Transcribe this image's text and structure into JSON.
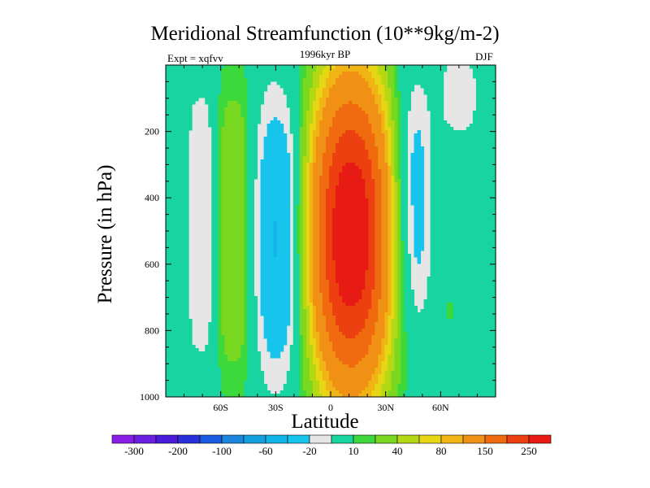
{
  "chart_data": {
    "type": "heatmap",
    "title": "Meridional Streamfunction (10**9kg/m-2)",
    "subtitle": "1996kyr BP",
    "left_string": "Expt = xqfvv",
    "right_string": "DJF",
    "xlabel": "Latitude",
    "ylabel": "Pressure (in hPa)",
    "xlim": [
      -90,
      90
    ],
    "ylim": [
      1000,
      0
    ],
    "x_ticks": [
      {
        "value": -60,
        "label": "60S"
      },
      {
        "value": -30,
        "label": "30S"
      },
      {
        "value": 0,
        "label": "0"
      },
      {
        "value": 30,
        "label": "30N"
      },
      {
        "value": 60,
        "label": "60N"
      }
    ],
    "y_ticks": [
      {
        "value": 200,
        "label": "200"
      },
      {
        "value": 400,
        "label": "400"
      },
      {
        "value": 600,
        "label": "600"
      },
      {
        "value": 800,
        "label": "800"
      },
      {
        "value": 1000,
        "label": "1000"
      }
    ],
    "contour_levels": [
      -300,
      -250,
      -200,
      -150,
      -100,
      -80,
      -60,
      -40,
      -20,
      -10,
      10,
      20,
      40,
      60,
      80,
      100,
      150,
      200,
      250,
      300
    ],
    "colorbar_labels": [
      "-300",
      "-200",
      "-100",
      "-60",
      "-20",
      "10",
      "40",
      "80",
      "150",
      "250"
    ],
    "colorbar_colors": [
      "#8a1ee6",
      "#6a1ee0",
      "#4a1ad8",
      "#2a30d8",
      "#1a5ae0",
      "#1a86e0",
      "#14a0e0",
      "#12b4e8",
      "#16c4ec",
      "#e6e6e6",
      "#18d4a0",
      "#3cd83c",
      "#7ad820",
      "#b4d814",
      "#e6d614",
      "#f0b414",
      "#f09014",
      "#f06a10",
      "#ec4010",
      "#e81a14"
    ],
    "features": [
      {
        "region": "southern high-latitude negative cell",
        "lat_range": [
          -78,
          -65
        ],
        "p_range": [
          20,
          970
        ],
        "value": -20
      },
      {
        "region": "southern mid-latitude positive cell",
        "lat_range": [
          -62,
          -45
        ],
        "p_range": [
          20,
          990
        ],
        "value": 20
      },
      {
        "region": "southern subtropical negative cell",
        "lat_range": [
          -42,
          -12
        ],
        "p_range": [
          90,
          980
        ],
        "value": -20,
        "core_value": -40
      },
      {
        "region": "Hadley cell (equatorial positive)",
        "lat_range": [
          -10,
          32
        ],
        "p_range": [
          20,
          990
        ],
        "value": 150,
        "max_value": 250
      },
      {
        "region": "northern subtropical negative cell",
        "lat_range": [
          32,
          55
        ],
        "p_range": [
          130,
          860
        ],
        "value": -20,
        "core_value": -40
      },
      {
        "region": "northern high-latitude negative cell",
        "lat_range": [
          60,
          80
        ],
        "p_range": [
          20,
          200
        ],
        "value": -20
      }
    ]
  }
}
